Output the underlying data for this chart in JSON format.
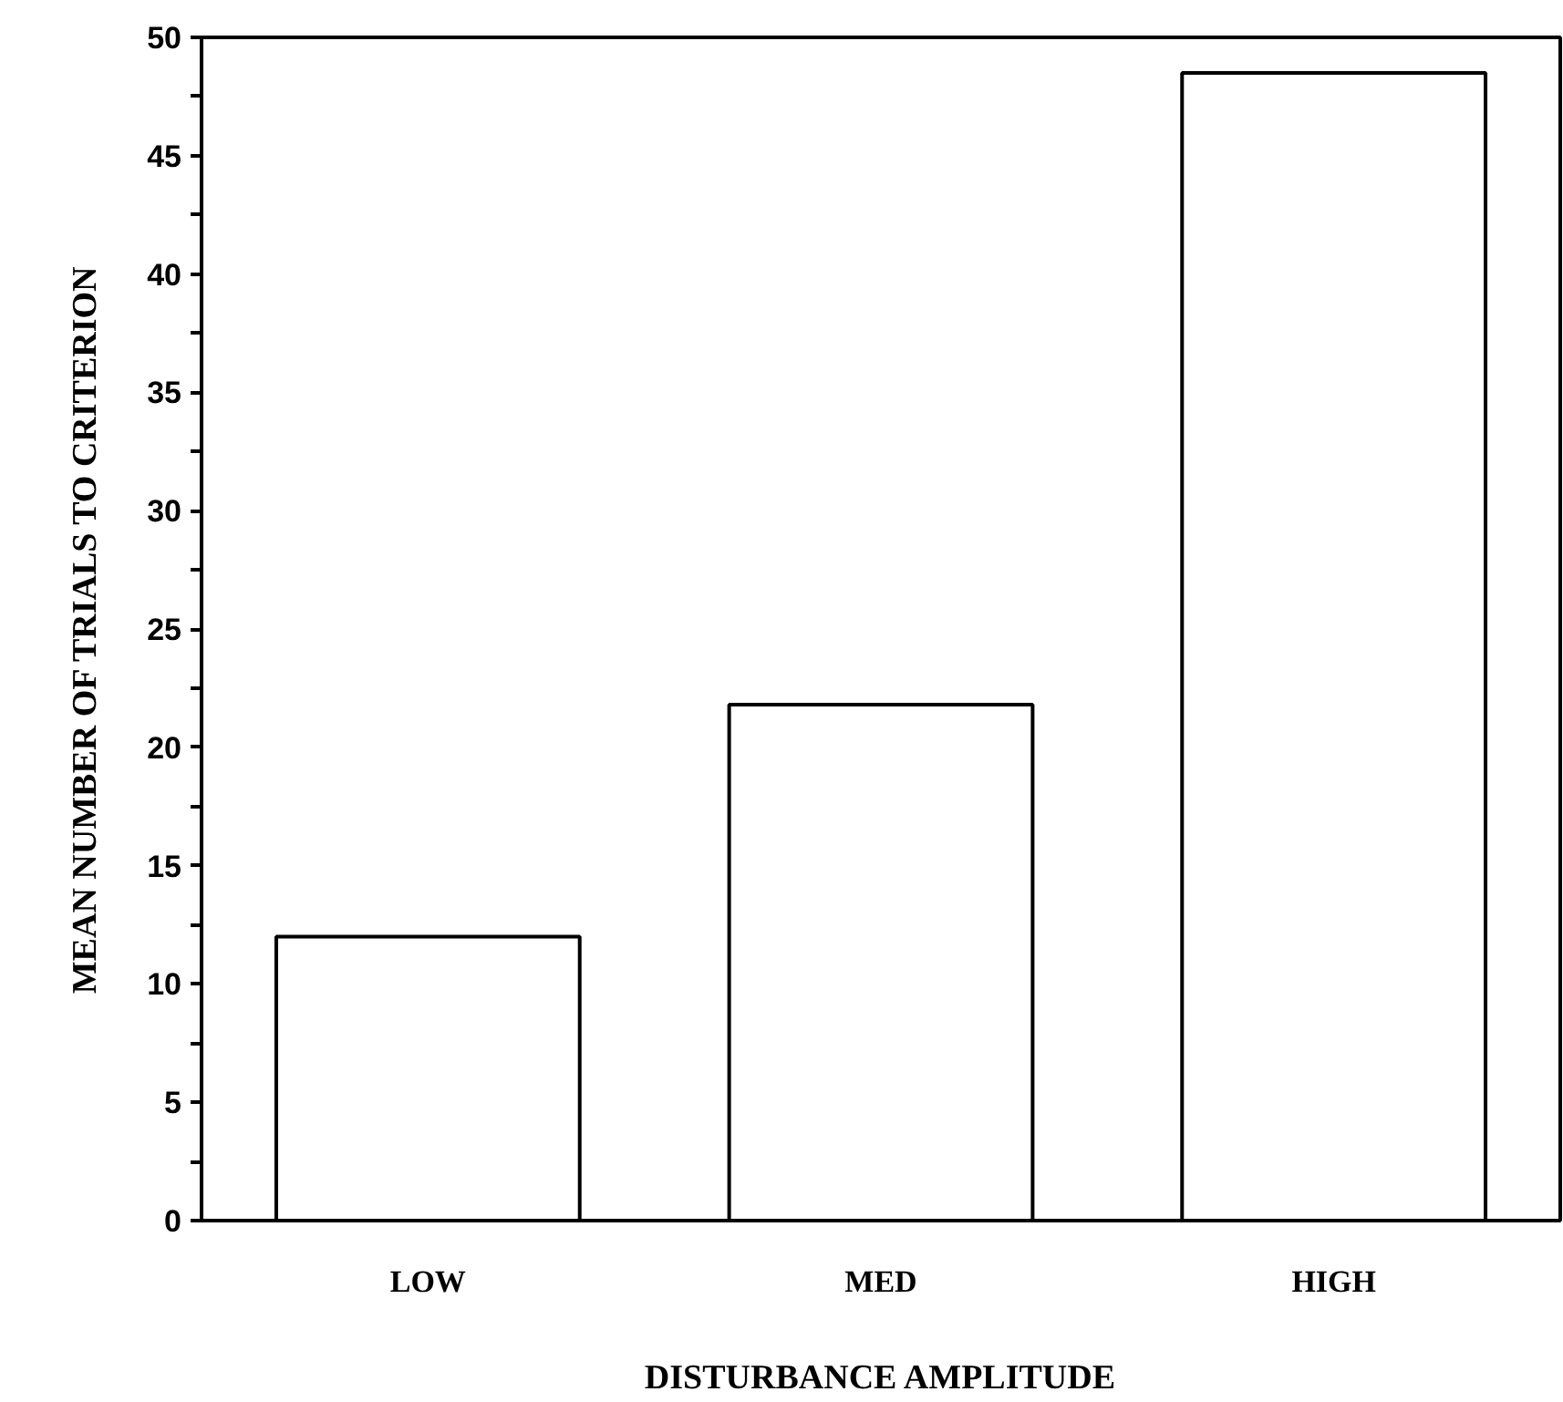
{
  "chart_data": {
    "type": "bar",
    "xlabel": "DISTURBANCE AMPLITUDE",
    "ylabel": "MEAN NUMBER OF TRIALS TO CRITERION",
    "categories": [
      "LOW",
      "MED",
      "HIGH"
    ],
    "values": [
      12,
      21.8,
      48.5
    ],
    "color": "#ffffff",
    "ylim": [
      0,
      50
    ],
    "yticks": [
      0,
      {
        "value": 2.5,
        "label": null
      },
      5,
      {
        "value": 7.5,
        "label": null
      },
      10,
      {
        "value": 12.5,
        "label": null
      },
      15,
      {
        "value": 17.5,
        "label": null
      },
      20,
      {
        "value": 22.5,
        "label": null
      },
      25,
      {
        "value": 27.5,
        "label": null
      },
      30,
      {
        "value": 32.5,
        "label": null
      },
      35,
      {
        "value": 37.5,
        "label": null
      },
      40,
      {
        "value": 42.5,
        "label": null
      },
      45,
      {
        "value": 47.5,
        "label": null
      },
      50
    ],
    "grid": false
  }
}
